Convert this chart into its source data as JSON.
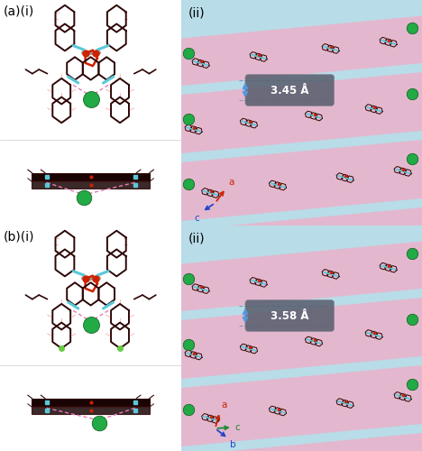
{
  "figsize": [
    4.68,
    5.0
  ],
  "dpi": 100,
  "bg_color": "#ffffff",
  "label_fontsize": 10,
  "panels": {
    "a_i_label": "(a)(i)",
    "a_ii_label": "(ii)",
    "b_i_label": "(b)(i)",
    "b_ii_label": "(ii)"
  },
  "colors": {
    "dark_brown": "#2d0505",
    "cyan_pt": "#5ac8d8",
    "red_O": "#cc2200",
    "gray_pt": "#999999",
    "pink_dash": "#e87ab8",
    "green_Cl": "#22aa44",
    "pink_bg": "#e8b4cc",
    "blue_bg": "#b8dce8",
    "axis_red": "#cc2200",
    "axis_blue": "#2244cc",
    "axis_green": "#228833",
    "dist_box_bg": "#606878",
    "dist_arrow": "#5599dd",
    "hydrogen_pink": "#ffbbbb"
  },
  "dist_a": "3.45 Å",
  "dist_b": "3.58 Å",
  "axis_top": {
    "a": "red",
    "c": "blue"
  },
  "axis_bot": {
    "a": "red",
    "b": "blue",
    "c": "green"
  }
}
